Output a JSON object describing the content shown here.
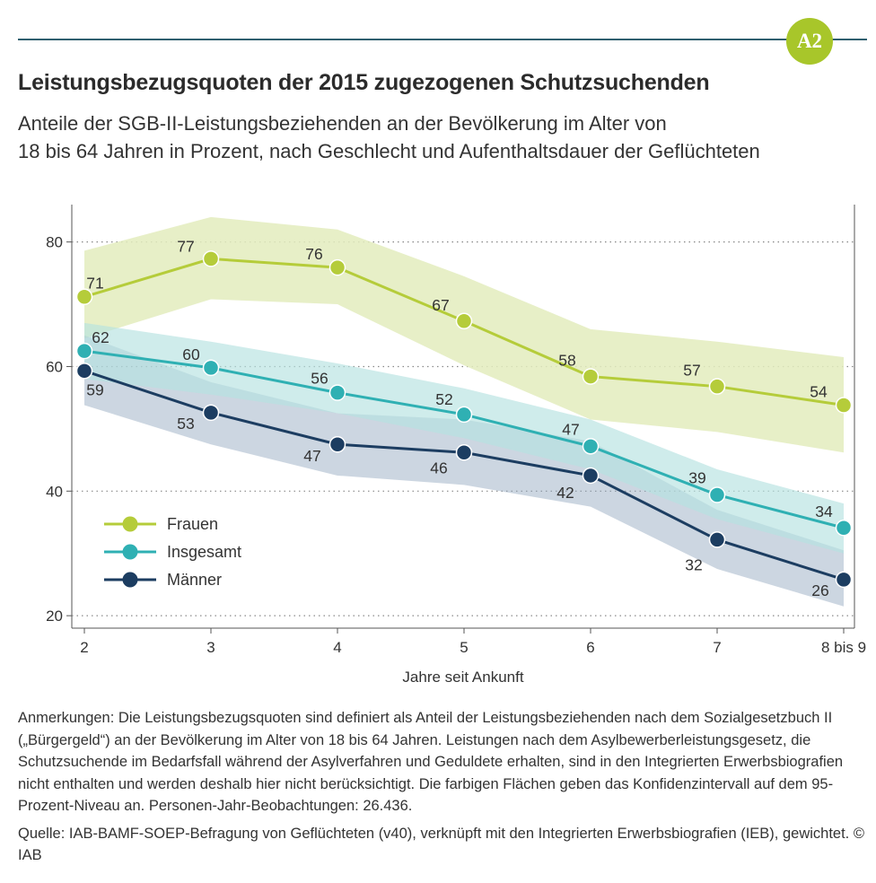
{
  "header": {
    "badge": "A2",
    "title": "Leistungsbezugsquoten der 2015 zugezogenen Schutzsuchenden",
    "subtitle_line1": "Anteile der SGB-II-Leistungsbeziehenden an der Bevölkerung im Alter von",
    "subtitle_line2": "18 bis 64 Jahren in Prozent, nach Geschlecht und Aufenthaltsdauer der Geflüchteten"
  },
  "colors": {
    "frauen": "#b5cc3a",
    "frauen_band": "#e3ecbd",
    "insgesamt": "#2fb0b3",
    "insgesamt_band": "#b6e2e0",
    "maenner": "#1c3d61",
    "maenner_band": "#8fa3bd",
    "rule": "#2f5f6f",
    "badge": "#a8c62a"
  },
  "chart_data": {
    "type": "line",
    "xlabel": "Jahre seit Ankunft",
    "ylabel": "",
    "categories": [
      "2",
      "3",
      "4",
      "5",
      "6",
      "7",
      "8 bis 9"
    ],
    "ylim": [
      18,
      86
    ],
    "yticks": [
      20,
      40,
      60,
      80
    ],
    "grid": "horizontal dotted",
    "legend_position": "bottom-left",
    "series": [
      {
        "name": "Frauen",
        "color_key": "frauen",
        "values": [
          71.2,
          77.3,
          75.9,
          67.3,
          58.4,
          56.8,
          53.8
        ],
        "labels": [
          "71",
          "77",
          "76",
          "67",
          "58",
          "57",
          "54"
        ],
        "ci_low": [
          64.5,
          70.8,
          70.0,
          60.2,
          51.5,
          49.5,
          46.2
        ],
        "ci_high": [
          78.6,
          84.0,
          82.0,
          74.5,
          66.0,
          64.0,
          61.5
        ]
      },
      {
        "name": "Insgesamt",
        "color_key": "insgesamt",
        "values": [
          62.5,
          59.8,
          55.8,
          52.3,
          47.2,
          39.4,
          34.1
        ],
        "labels": [
          "62",
          "60",
          "56",
          "52",
          "47",
          "39",
          "34"
        ],
        "ci_low": [
          58.0,
          55.5,
          52.5,
          48.5,
          43.5,
          35.5,
          30.0
        ],
        "ci_high": [
          67.0,
          64.0,
          60.5,
          56.5,
          51.5,
          43.5,
          38.0
        ]
      },
      {
        "name": "Männer",
        "color_key": "maenner",
        "values": [
          59.3,
          52.6,
          47.5,
          46.2,
          42.5,
          32.2,
          25.8
        ],
        "labels": [
          "59",
          "53",
          "47",
          "46",
          "42",
          "32",
          "26"
        ],
        "ci_low": [
          53.8,
          47.5,
          42.5,
          41.0,
          37.5,
          27.5,
          21.5
        ],
        "ci_high": [
          65.0,
          57.5,
          52.5,
          51.5,
          48.0,
          37.0,
          30.5
        ]
      }
    ]
  },
  "notes": {
    "anmerkungen": "Anmerkungen:  Die Leistungsbezugsquoten sind definiert als Anteil der Leistungsbeziehenden nach dem Sozialgesetzbuch II („Bürgergeld“) an der Bevölkerung im Alter von 18 bis 64 Jahren. Leistungen nach dem Asylbewerberleistungsgesetz, die Schutzsuchende im Bedarfsfall während der Asylverfahren und Geduldete erhalten, sind in den Integrierten Erwerbsbiografien nicht enthalten und werden deshalb hier nicht berücksichtigt. Die farbigen Flächen geben das Konfidenzintervall auf dem 95-Prozent-Niveau an. Personen-Jahr-Beobachtungen: 26.436.",
    "quelle": "Quelle: IAB-BAMF-SOEP-Befragung von Geflüchteten (v40), verknüpft mit den Integrierten Erwerbsbiografien (IEB), gewichtet.  © IAB"
  }
}
